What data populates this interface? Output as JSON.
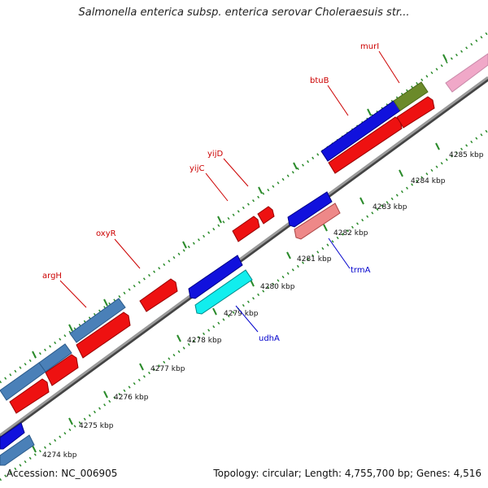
{
  "title": "Salmonella enterica subsp. enterica serovar Choleraesuis str...",
  "footer": {
    "accession": "Accession: NC_006905",
    "summary": "Topology: circular; Length: 4,755,700 bp; Genes: 4,516"
  },
  "colors": {
    "backbone": "#8a8a8a",
    "tick": "#2a8a2a",
    "label_top": "#cc0000",
    "label_bottom": "#0000cc",
    "red": "#ee1111",
    "blue": "#1111dd",
    "steel": "#4a80b8",
    "cyan": "#11eeee",
    "salmon": "#ee8888",
    "olive": "#6b8a2a",
    "pink": "#f0a8c8"
  },
  "ticks": [
    {
      "label": "4274 kbp"
    },
    {
      "label": "4275 kbp"
    },
    {
      "label": "4276 kbp"
    },
    {
      "label": "4277 kbp"
    },
    {
      "label": "4278 kbp"
    },
    {
      "label": "4279 kbp"
    },
    {
      "label": "4280 kbp"
    },
    {
      "label": "4281 kbp"
    },
    {
      "label": "4282 kbp"
    },
    {
      "label": "4283 kbp"
    },
    {
      "label": "4284 kbp"
    },
    {
      "label": "4285 kbp"
    }
  ],
  "gene_labels": [
    {
      "name": "argH",
      "strand": "forward"
    },
    {
      "name": "oxyR",
      "strand": "forward"
    },
    {
      "name": "yijC",
      "strand": "forward"
    },
    {
      "name": "yijD",
      "strand": "forward"
    },
    {
      "name": "btuB",
      "strand": "forward"
    },
    {
      "name": "murI",
      "strand": "forward"
    },
    {
      "name": "udhA",
      "strand": "reverse"
    },
    {
      "name": "trmA",
      "strand": "reverse"
    }
  ]
}
